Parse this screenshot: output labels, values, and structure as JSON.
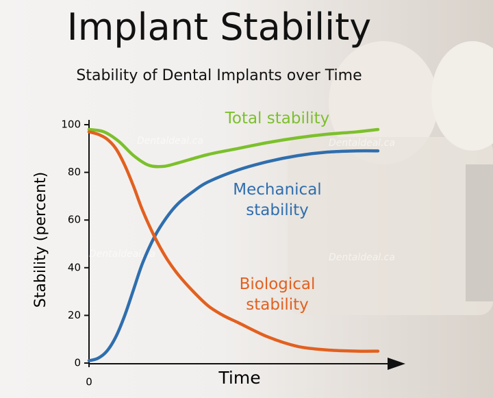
{
  "chart_data": {
    "type": "line",
    "title": "Implant Stability",
    "subtitle": "Stability of Dental Implants over Time",
    "x_label": "Time",
    "y_label": "Stability (percent)",
    "watermark": "Dentaldeal.ca",
    "xlim": [
      0,
      100
    ],
    "xticks": [
      0
    ],
    "ylim": [
      0,
      100
    ],
    "yticks": [
      0,
      20,
      40,
      60,
      80,
      100
    ],
    "series": [
      {
        "name": "Total stability",
        "color": "#7cc02b",
        "x": [
          0,
          5,
          10,
          15,
          20,
          25,
          30,
          40,
          50,
          60,
          70,
          80,
          90,
          97
        ],
        "values": [
          98,
          97,
          93,
          87,
          83,
          82.5,
          84,
          87.5,
          90,
          92.5,
          94.5,
          96,
          97,
          98
        ]
      },
      {
        "name": "Mechanical stability",
        "color": "#2f6eae",
        "x": [
          0,
          3,
          6,
          9,
          12,
          15,
          18,
          22,
          26,
          30,
          35,
          40,
          50,
          60,
          70,
          80,
          90,
          97
        ],
        "values": [
          1,
          2,
          5,
          11,
          20,
          31,
          42,
          53,
          61,
          67,
          72,
          76,
          81,
          84.5,
          87,
          88.5,
          89,
          89
        ]
      },
      {
        "name": "Biological stability",
        "color": "#e2601f",
        "x": [
          0,
          3,
          6,
          9,
          12,
          15,
          18,
          22,
          26,
          30,
          35,
          40,
          45,
          50,
          60,
          70,
          80,
          90,
          97
        ],
        "values": [
          97,
          96,
          94,
          90,
          83,
          74,
          64,
          53,
          44,
          37,
          30,
          24,
          20,
          17,
          11,
          7,
          5.5,
          5,
          5
        ]
      }
    ]
  }
}
